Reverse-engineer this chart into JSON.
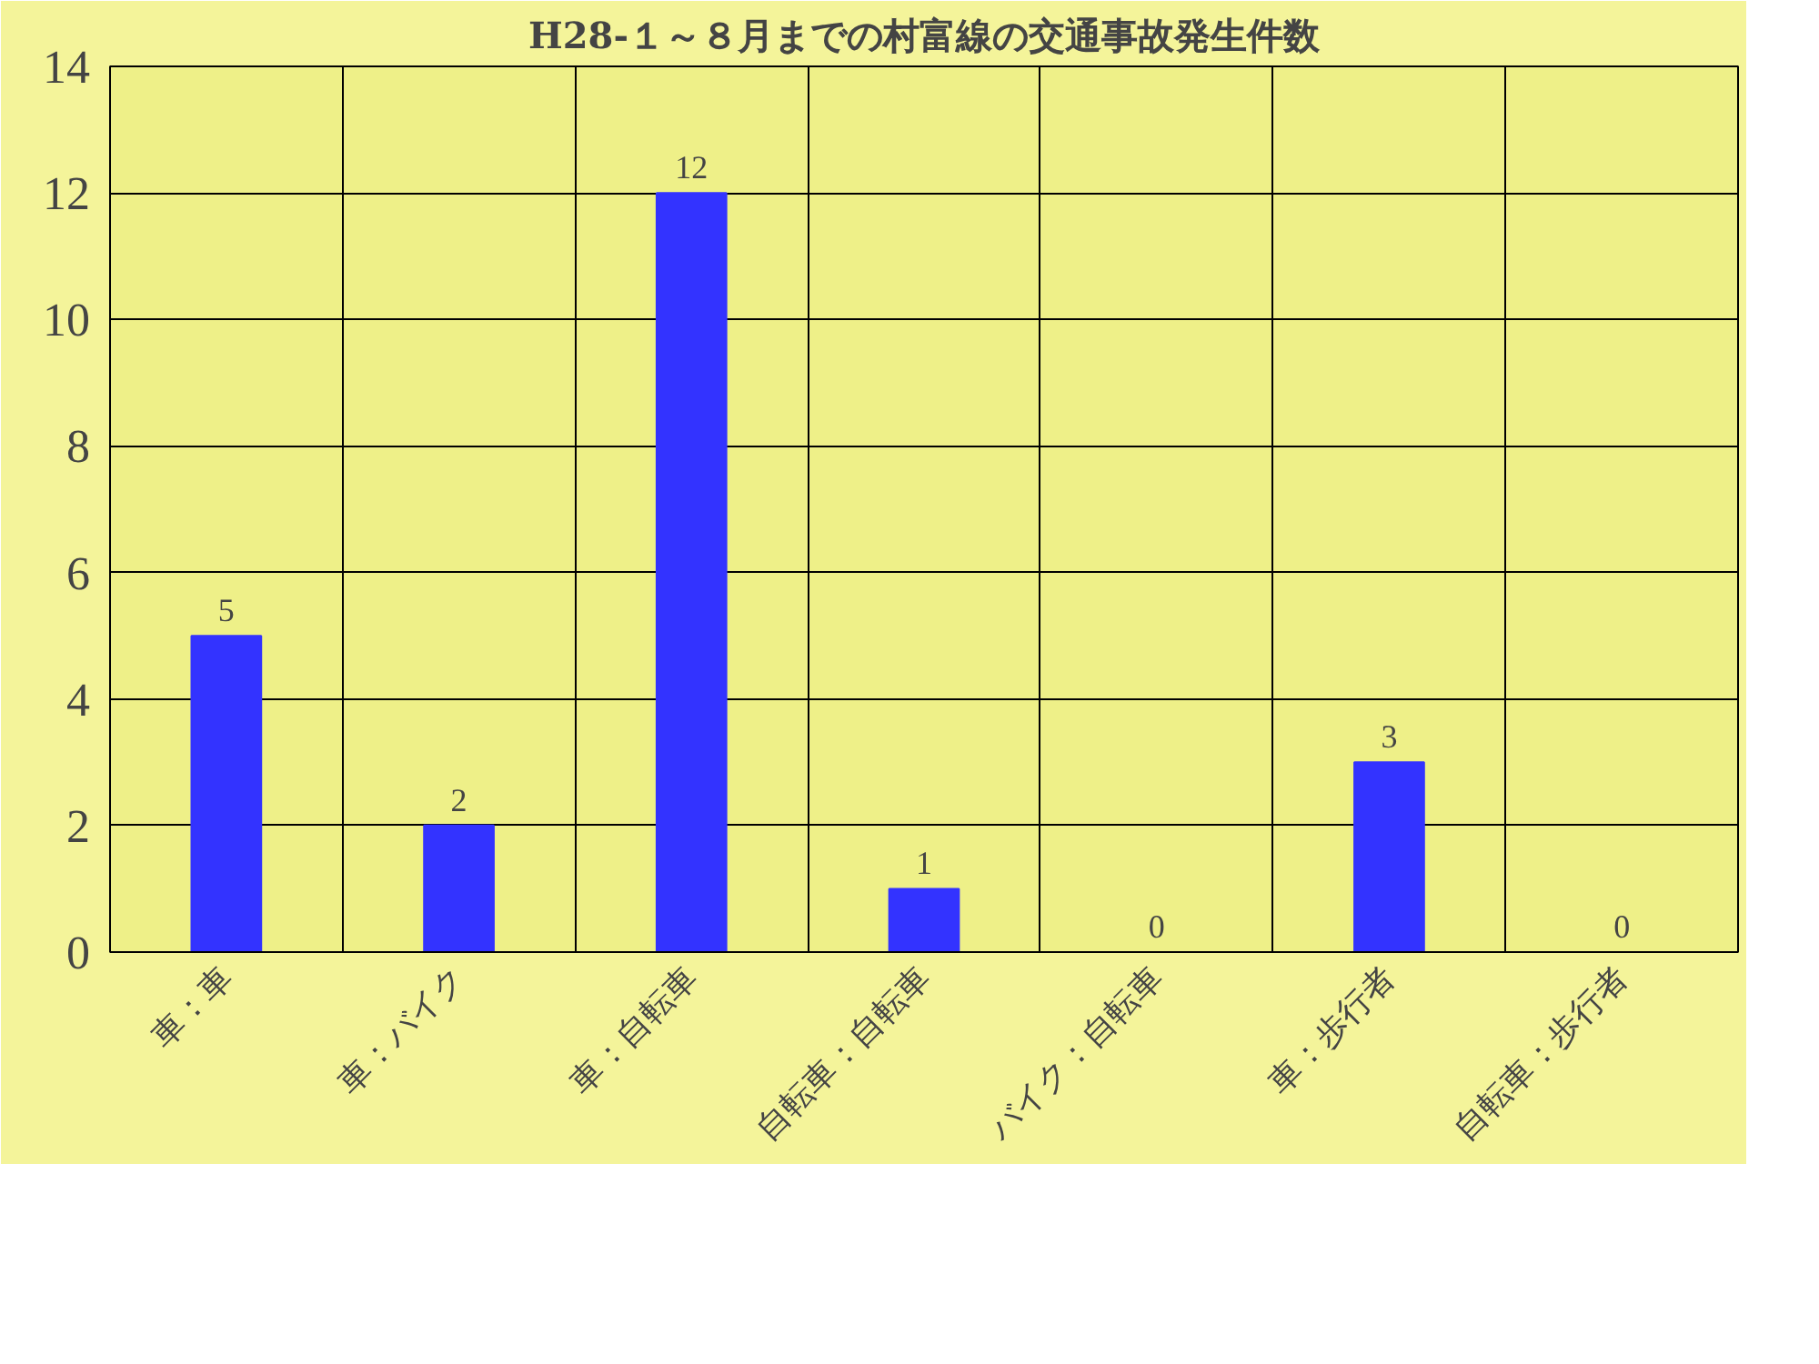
{
  "chart_data": {
    "type": "bar",
    "title": "H28-１～８月までの村富線の交通事故発生件数",
    "categories": [
      "車：車",
      "車：バイク",
      "車：自転車",
      "自転車：自転車",
      "バイク：自転車",
      "車：歩行者",
      "自転車：歩行者"
    ],
    "values": [
      5,
      2,
      12,
      1,
      0,
      3,
      0
    ],
    "color": "#3333ff",
    "data_labels": true,
    "ylim": [
      0,
      14
    ],
    "yticks": [
      0,
      2,
      4,
      6,
      8,
      10,
      12,
      14
    ],
    "grid": true
  }
}
